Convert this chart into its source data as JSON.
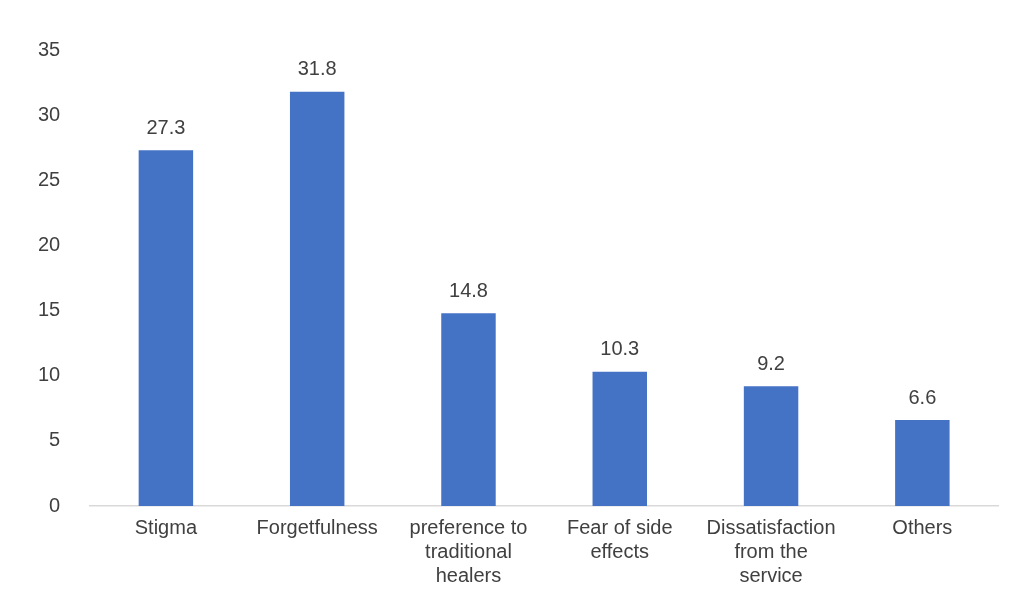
{
  "chart_data": {
    "type": "bar",
    "categories": [
      "Stigma",
      "Forgetfulness",
      "preference to traditional healers",
      "Fear of side effects",
      "Dissatisfaction from the service",
      "Others"
    ],
    "values": [
      27.3,
      31.8,
      14.8,
      10.3,
      9.2,
      6.6
    ],
    "color": "#4472c4",
    "ylim": [
      0,
      35
    ],
    "yticks": [
      0,
      5,
      10,
      15,
      20,
      25,
      30,
      35
    ],
    "grid": false,
    "legend": false,
    "data_labels": true
  }
}
